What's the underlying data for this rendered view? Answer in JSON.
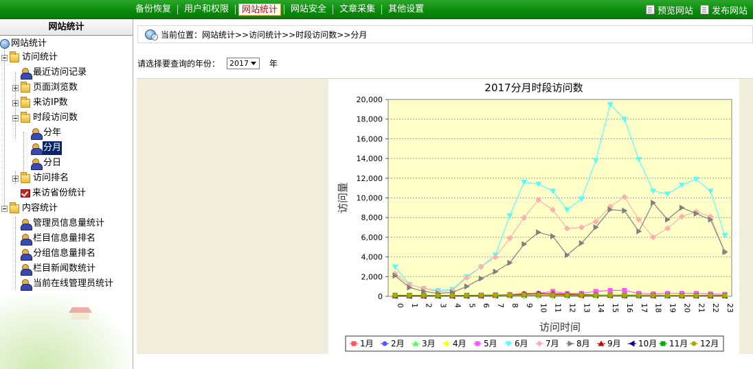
{
  "topnav": {
    "tabs": [
      "备份恢复",
      "用户和权限",
      "网站统计",
      "网站安全",
      "文章采集",
      "其他设置"
    ],
    "active": 2,
    "right": [
      "预览网站",
      "发布网站"
    ]
  },
  "sidebar": {
    "title": "网站统计",
    "items": [
      {
        "label": "网站统计",
        "icon": "globe-icon",
        "exp": ""
      },
      {
        "label": "访问统计",
        "icon": "folder-icon",
        "exp": "minus"
      },
      {
        "label": "最近访问记录",
        "icon": "users-icon",
        "exp": ""
      },
      {
        "label": "页面浏览数",
        "icon": "folder-icon",
        "exp": "plus"
      },
      {
        "label": "来访IP数",
        "icon": "folder-icon",
        "exp": "plus"
      },
      {
        "label": "时段访问数",
        "icon": "folder-icon",
        "exp": "minus"
      },
      {
        "label": "分年",
        "icon": "users-icon",
        "exp": ""
      },
      {
        "label": "分月",
        "icon": "users-icon",
        "exp": "",
        "selected": true
      },
      {
        "label": "分日",
        "icon": "users-icon",
        "exp": ""
      },
      {
        "label": "访问排名",
        "icon": "folder-icon",
        "exp": "plus"
      },
      {
        "label": "来访省份统计",
        "icon": "report-icon",
        "exp": ""
      },
      {
        "label": "内容统计",
        "icon": "folder-icon",
        "exp": "minus"
      },
      {
        "label": "管理员信息量统计",
        "icon": "users-icon",
        "exp": ""
      },
      {
        "label": "栏目信息量排名",
        "icon": "users-icon",
        "exp": ""
      },
      {
        "label": "分组信息量排名",
        "icon": "users-icon",
        "exp": ""
      },
      {
        "label": "栏目新闻数统计",
        "icon": "users-icon",
        "exp": ""
      },
      {
        "label": "当前在线管理员统计",
        "icon": "users-icon",
        "exp": ""
      }
    ]
  },
  "breadcrumb": "当前位置：网站统计>>访问统计>>时段访问数>>分月",
  "year_picker": {
    "label": "请选择要查询的年份：",
    "value": "2017",
    "unit": "年"
  },
  "chart_data": {
    "type": "line",
    "title": "2017分月时段访问数",
    "xlabel": "访问时间",
    "ylabel": "访问量",
    "x": [
      "0",
      "1",
      "2",
      "3",
      "4",
      "5",
      "6",
      "7",
      "8",
      "9",
      "10",
      "11",
      "12",
      "13",
      "14",
      "15",
      "16",
      "17",
      "18",
      "19",
      "20",
      "21",
      "22",
      "23"
    ],
    "ylim": [
      0,
      20000
    ],
    "yticks": [
      "0",
      "2,000",
      "4,000",
      "6,000",
      "8,000",
      "10,000",
      "12,000",
      "14,000",
      "16,000",
      "18,000",
      "20,000"
    ],
    "grid": true,
    "legend_position": "bottom",
    "series": [
      {
        "name": "1月",
        "color": "#ff5555",
        "marker": "square",
        "values": [
          80,
          70,
          60,
          50,
          60,
          70,
          80,
          90,
          100,
          110,
          120,
          100,
          90,
          80,
          80,
          90,
          90,
          80,
          70,
          70,
          60,
          60,
          50,
          60
        ]
      },
      {
        "name": "2月",
        "color": "#5555ff",
        "marker": "circle",
        "values": [
          90,
          80,
          70,
          60,
          60,
          70,
          80,
          100,
          110,
          120,
          130,
          110,
          100,
          90,
          90,
          100,
          100,
          90,
          80,
          80,
          70,
          70,
          60,
          60
        ]
      },
      {
        "name": "3月",
        "color": "#55ff55",
        "marker": "triangle",
        "values": [
          100,
          90,
          80,
          70,
          70,
          80,
          90,
          110,
          120,
          130,
          140,
          120,
          110,
          100,
          100,
          110,
          110,
          100,
          90,
          90,
          80,
          80,
          70,
          70
        ]
      },
      {
        "name": "4月",
        "color": "#ffff00",
        "marker": "diamond",
        "values": [
          60,
          50,
          40,
          30,
          30,
          40,
          50,
          60,
          70,
          80,
          90,
          80,
          70,
          60,
          60,
          70,
          70,
          60,
          50,
          50,
          40,
          40,
          30,
          30
        ]
      },
      {
        "name": "5月",
        "color": "#ff55ff",
        "marker": "rect",
        "values": [
          120,
          110,
          100,
          90,
          90,
          100,
          130,
          150,
          180,
          250,
          300,
          500,
          280,
          300,
          500,
          600,
          600,
          300,
          250,
          300,
          300,
          300,
          250,
          200
        ]
      },
      {
        "name": "6月",
        "color": "#55ffff",
        "marker": "triangle-down",
        "values": [
          3000,
          1200,
          800,
          600,
          700,
          2000,
          3000,
          4200,
          8200,
          11600,
          11400,
          10700,
          8800,
          9900,
          13800,
          19500,
          18000,
          13900,
          10700,
          10400,
          11300,
          11900,
          10700,
          6200
        ]
      },
      {
        "name": "7月",
        "color": "#ffafaf",
        "marker": "diamond",
        "values": [
          2300,
          1200,
          800,
          500,
          600,
          1900,
          3000,
          4000,
          5900,
          8000,
          9800,
          8800,
          6900,
          7000,
          7600,
          9100,
          10100,
          7800,
          6000,
          6900,
          8100,
          8600,
          8100,
          4500
        ]
      },
      {
        "name": "8月",
        "color": "#808080",
        "marker": "triangle-right",
        "values": [
          2100,
          900,
          500,
          300,
          400,
          1000,
          1800,
          2500,
          3400,
          5300,
          6500,
          6100,
          4200,
          5400,
          7000,
          8800,
          8700,
          6600,
          9500,
          7800,
          9000,
          8400,
          7800,
          4500
        ]
      },
      {
        "name": "9月",
        "color": "#c00000",
        "marker": "triangle",
        "values": [
          50,
          50,
          40,
          40,
          40,
          50,
          60,
          100,
          150,
          250,
          300,
          250,
          200,
          180,
          150,
          100,
          80,
          80,
          70,
          70,
          60,
          60,
          50,
          50
        ]
      },
      {
        "name": "10月",
        "color": "#00008b",
        "marker": "triangle-left",
        "values": [
          40,
          40,
          30,
          30,
          30,
          40,
          50,
          70,
          90,
          110,
          120,
          100,
          90,
          80,
          80,
          90,
          90,
          80,
          70,
          70,
          60,
          60,
          50,
          50
        ]
      },
      {
        "name": "11月",
        "color": "#00aa00",
        "marker": "square",
        "values": [
          100,
          100,
          90,
          80,
          80,
          90,
          100,
          110,
          120,
          130,
          130,
          120,
          110,
          110,
          110,
          120,
          120,
          110,
          100,
          100,
          90,
          90,
          90,
          90
        ]
      },
      {
        "name": "12月",
        "color": "#aaaa00",
        "marker": "circle",
        "values": [
          110,
          100,
          90,
          90,
          90,
          100,
          110,
          120,
          130,
          140,
          140,
          130,
          120,
          120,
          120,
          130,
          130,
          120,
          110,
          110,
          100,
          100,
          100,
          100
        ]
      }
    ]
  }
}
